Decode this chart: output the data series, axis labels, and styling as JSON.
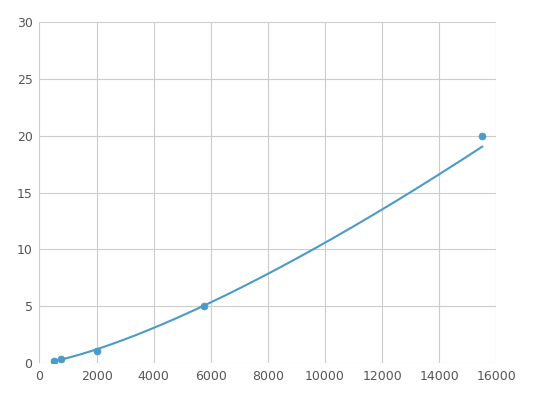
{
  "x": [
    500,
    750,
    2000,
    5750,
    15500
  ],
  "y": [
    0.2,
    0.35,
    1.1,
    5.0,
    20.0
  ],
  "line_color": "#4a9bc7",
  "marker_color": "#4a9bc7",
  "marker_size": 5,
  "xlim": [
    0,
    16000
  ],
  "ylim": [
    0,
    30
  ],
  "xticks": [
    0,
    2000,
    4000,
    6000,
    8000,
    10000,
    12000,
    14000,
    16000
  ],
  "yticks": [
    0,
    5,
    10,
    15,
    20,
    25,
    30
  ],
  "grid_color": "#cccccc",
  "background_color": "#ffffff",
  "line_width": 1.5
}
